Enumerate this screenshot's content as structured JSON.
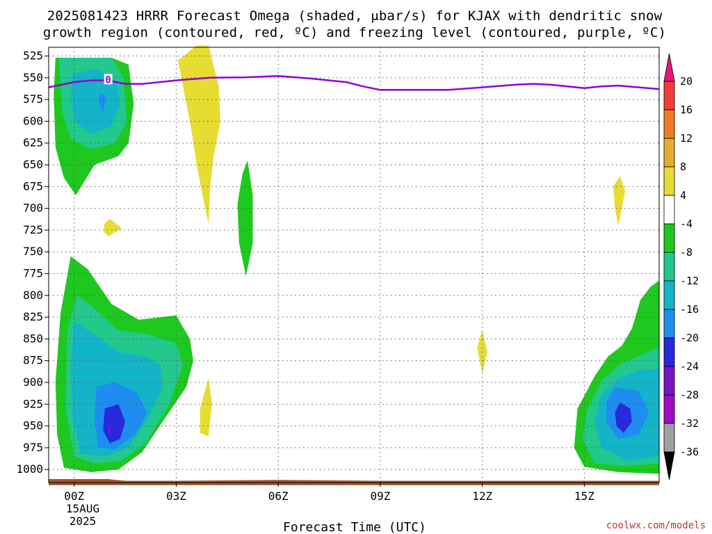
{
  "title": {
    "line1": "2025081423 HRRR Forecast Omega (shaded, μbar/s) for KJAX with dendritic snow",
    "line2": "growth region (contoured, red, ºC) and freezing level (contoured, purple, ºC)"
  },
  "xlabel": "Forecast Time (UTC)",
  "date_label": {
    "day": "15AUG",
    "year": "2025"
  },
  "credit": "coolwx.com/models",
  "colors": {
    "ground": "#a0522d",
    "freezing_level": "#9400d3",
    "grid": "#555555"
  },
  "chart_data": {
    "type": "heatmap",
    "x_axis": {
      "range_hours": [
        -0.75,
        17.2
      ],
      "ticks": [
        0,
        3,
        6,
        9,
        12,
        15
      ],
      "tick_labels": [
        "00Z",
        "03Z",
        "06Z",
        "09Z",
        "12Z",
        "15Z"
      ]
    },
    "y_axis": {
      "range_mb": [
        1015,
        515
      ],
      "inverted": true,
      "ticks": [
        525,
        550,
        575,
        600,
        625,
        650,
        675,
        700,
        725,
        750,
        775,
        800,
        825,
        850,
        875,
        900,
        925,
        950,
        975,
        1000
      ],
      "tick_labels": [
        "525",
        "550",
        "575",
        "600",
        "625",
        "650",
        "675",
        "700",
        "725",
        "750",
        "775",
        "800",
        "825",
        "850",
        "875",
        "900",
        "925",
        "950",
        "975",
        "1000"
      ]
    },
    "grid": true,
    "colorbar": {
      "labels": [
        "20",
        "16",
        "12",
        "8",
        "4",
        "-4",
        "-8",
        "-12",
        "-16",
        "-20",
        "-24",
        "-28",
        "-32",
        "-36"
      ],
      "bins": [
        {
          "range": [
            16,
            20
          ],
          "color": "#f03c3c"
        },
        {
          "range": [
            12,
            16
          ],
          "color": "#ee7d26"
        },
        {
          "range": [
            8,
            12
          ],
          "color": "#e6ad2c"
        },
        {
          "range": [
            4,
            8
          ],
          "color": "#e6dc32"
        },
        {
          "range": [
            -4,
            4
          ],
          "color": "#ffffff"
        },
        {
          "range": [
            -8,
            -4
          ],
          "color": "#1ec81e"
        },
        {
          "range": [
            -12,
            -8
          ],
          "color": "#22c88c"
        },
        {
          "range": [
            -16,
            -12
          ],
          "color": "#14b4c8"
        },
        {
          "range": [
            -20,
            -16
          ],
          "color": "#1e8cf0"
        },
        {
          "range": [
            -24,
            -20
          ],
          "color": "#2828dc"
        },
        {
          "range": [
            -28,
            -24
          ],
          "color": "#7814c8"
        },
        {
          "range": [
            -32,
            -28
          ],
          "color": "#a00ac8"
        },
        {
          "range": [
            -36,
            -32
          ],
          "color": "#a0a0a0"
        }
      ],
      "over_color": "#e6147a",
      "under_color": "#000000"
    },
    "omega_regions": [
      {
        "color": "#1ec81e",
        "pts": [
          [
            -0.55,
            527
          ],
          [
            0.2,
            527
          ],
          [
            1.1,
            527
          ],
          [
            1.6,
            535
          ],
          [
            1.75,
            580
          ],
          [
            1.6,
            625
          ],
          [
            1.3,
            640
          ],
          [
            0.6,
            650
          ],
          [
            0.05,
            685
          ],
          [
            -0.3,
            665
          ],
          [
            -0.55,
            630
          ],
          [
            -0.6,
            570
          ]
        ]
      },
      {
        "color": "#22c88c",
        "pts": [
          [
            -0.45,
            527
          ],
          [
            1.1,
            527
          ],
          [
            1.45,
            550
          ],
          [
            1.55,
            600
          ],
          [
            1.2,
            625
          ],
          [
            0.5,
            632
          ],
          [
            -0.1,
            620
          ],
          [
            -0.35,
            590
          ]
        ]
      },
      {
        "color": "#14b4c8",
        "pts": [
          [
            -0.05,
            545
          ],
          [
            0.7,
            540
          ],
          [
            1.25,
            555
          ],
          [
            1.35,
            580
          ],
          [
            1.1,
            606
          ],
          [
            0.5,
            615
          ],
          [
            0.0,
            600
          ],
          [
            -0.1,
            570
          ]
        ]
      },
      {
        "color": "#1e8cf0",
        "pts": [
          [
            0.75,
            568
          ],
          [
            0.95,
            572
          ],
          [
            0.85,
            590
          ],
          [
            0.72,
            578
          ]
        ]
      },
      {
        "color": "#1ec81e",
        "pts": [
          [
            -0.4,
            820
          ],
          [
            -0.1,
            755
          ],
          [
            0.4,
            770
          ],
          [
            1.1,
            810
          ],
          [
            1.9,
            828
          ],
          [
            3.0,
            823
          ],
          [
            3.4,
            850
          ],
          [
            3.5,
            875
          ],
          [
            3.3,
            905
          ],
          [
            2.6,
            945
          ],
          [
            2.0,
            980
          ],
          [
            1.3,
            1000
          ],
          [
            0.5,
            1003
          ],
          [
            -0.3,
            998
          ],
          [
            -0.5,
            960
          ],
          [
            -0.55,
            900
          ]
        ]
      },
      {
        "color": "#22c88c",
        "pts": [
          [
            -0.2,
            840
          ],
          [
            0.1,
            800
          ],
          [
            0.6,
            815
          ],
          [
            1.3,
            840
          ],
          [
            2.2,
            845
          ],
          [
            3.0,
            855
          ],
          [
            3.2,
            880
          ],
          [
            2.8,
            925
          ],
          [
            2.1,
            970
          ],
          [
            1.4,
            990
          ],
          [
            0.6,
            993
          ],
          [
            0.0,
            985
          ],
          [
            -0.25,
            930
          ]
        ]
      },
      {
        "color": "#14b4c8",
        "pts": [
          [
            0.0,
            830
          ],
          [
            0.6,
            845
          ],
          [
            1.3,
            865
          ],
          [
            2.1,
            870
          ],
          [
            2.55,
            880
          ],
          [
            2.6,
            905
          ],
          [
            2.2,
            940
          ],
          [
            1.6,
            975
          ],
          [
            0.9,
            985
          ],
          [
            0.2,
            982
          ],
          [
            -0.05,
            940
          ],
          [
            -0.1,
            880
          ]
        ]
      },
      {
        "color": "#1e8cf0",
        "pts": [
          [
            0.65,
            905
          ],
          [
            1.2,
            900
          ],
          [
            1.85,
            912
          ],
          [
            2.15,
            935
          ],
          [
            1.8,
            960
          ],
          [
            1.2,
            977
          ],
          [
            0.7,
            974
          ],
          [
            0.6,
            940
          ]
        ]
      },
      {
        "color": "#2828dc",
        "pts": [
          [
            0.9,
            930
          ],
          [
            1.3,
            925
          ],
          [
            1.5,
            945
          ],
          [
            1.35,
            965
          ],
          [
            1.05,
            970
          ],
          [
            0.85,
            955
          ]
        ]
      },
      {
        "color": "#a00ac8",
        "pts": [
          [
            1.0,
            952
          ],
          [
            1.08,
            950
          ],
          [
            1.05,
            962
          ]
        ]
      },
      {
        "color": "#1ec81e",
        "pts": [
          [
            17.2,
            783
          ],
          [
            17.2,
            1005
          ],
          [
            16.0,
            1003
          ],
          [
            15.0,
            997
          ],
          [
            14.7,
            975
          ],
          [
            14.8,
            930
          ],
          [
            15.3,
            893
          ],
          [
            15.7,
            870
          ],
          [
            16.1,
            858
          ],
          [
            16.4,
            838
          ],
          [
            16.65,
            805
          ],
          [
            16.95,
            790
          ]
        ]
      },
      {
        "color": "#22c88c",
        "pts": [
          [
            17.2,
            860
          ],
          [
            17.2,
            993
          ],
          [
            16.1,
            996
          ],
          [
            15.3,
            993
          ],
          [
            14.95,
            965
          ],
          [
            15.1,
            930
          ],
          [
            15.5,
            898
          ],
          [
            16.1,
            878
          ],
          [
            16.7,
            868
          ]
        ]
      },
      {
        "color": "#14b4c8",
        "pts": [
          [
            17.2,
            885
          ],
          [
            17.2,
            985
          ],
          [
            16.3,
            990
          ],
          [
            15.5,
            975
          ],
          [
            15.3,
            945
          ],
          [
            15.5,
            915
          ],
          [
            16.0,
            895
          ],
          [
            16.7,
            885
          ]
        ]
      },
      {
        "color": "#1e8cf0",
        "pts": [
          [
            15.9,
            905
          ],
          [
            16.6,
            910
          ],
          [
            16.9,
            935
          ],
          [
            16.6,
            960
          ],
          [
            16.0,
            965
          ],
          [
            15.65,
            945
          ],
          [
            15.65,
            922
          ]
        ]
      },
      {
        "color": "#2828dc",
        "pts": [
          [
            16.05,
            923
          ],
          [
            16.35,
            930
          ],
          [
            16.4,
            945
          ],
          [
            16.15,
            958
          ],
          [
            15.95,
            950
          ],
          [
            15.9,
            935
          ]
        ]
      },
      {
        "color": "#e6dc32",
        "pts": [
          [
            3.05,
            530
          ],
          [
            3.6,
            513
          ],
          [
            3.95,
            513
          ],
          [
            4.25,
            560
          ],
          [
            4.3,
            600
          ],
          [
            4.1,
            640
          ],
          [
            4.0,
            675
          ],
          [
            3.95,
            718
          ],
          [
            3.8,
            690
          ],
          [
            3.6,
            650
          ],
          [
            3.45,
            610
          ],
          [
            3.25,
            570
          ]
        ]
      },
      {
        "color": "#1ec81e",
        "pts": [
          [
            4.95,
            660
          ],
          [
            5.1,
            645
          ],
          [
            5.25,
            685
          ],
          [
            5.25,
            740
          ],
          [
            5.05,
            778
          ],
          [
            4.85,
            740
          ],
          [
            4.8,
            695
          ]
        ]
      },
      {
        "color": "#e6dc32",
        "pts": [
          [
            0.88,
            718
          ],
          [
            1.05,
            712
          ],
          [
            1.4,
            723
          ],
          [
            1.0,
            732
          ],
          [
            0.88,
            727
          ]
        ]
      },
      {
        "color": "#e6dc32",
        "pts": [
          [
            3.7,
            930
          ],
          [
            3.95,
            895
          ],
          [
            4.05,
            925
          ],
          [
            3.95,
            962
          ],
          [
            3.7,
            958
          ]
        ]
      },
      {
        "color": "#e6dc32",
        "pts": [
          [
            11.85,
            860
          ],
          [
            12.0,
            840
          ],
          [
            12.15,
            865
          ],
          [
            12.0,
            890
          ]
        ]
      },
      {
        "color": "#e6dc32",
        "pts": [
          [
            15.85,
            675
          ],
          [
            16.05,
            663
          ],
          [
            16.2,
            680
          ],
          [
            16.0,
            720
          ],
          [
            15.9,
            700
          ]
        ]
      }
    ],
    "freezing_level": {
      "label": "0",
      "label_at": [
        1.0,
        552
      ],
      "points": [
        [
          -0.75,
          561
        ],
        [
          0.0,
          555
        ],
        [
          0.5,
          553
        ],
        [
          1.0,
          553
        ],
        [
          1.5,
          557
        ],
        [
          2.0,
          557
        ],
        [
          3.0,
          553
        ],
        [
          4.0,
          550
        ],
        [
          5.0,
          549.5
        ],
        [
          6.0,
          548
        ],
        [
          7.0,
          551
        ],
        [
          8.0,
          555
        ],
        [
          8.5,
          560
        ],
        [
          9.0,
          564
        ],
        [
          10.0,
          564
        ],
        [
          11.0,
          564
        ],
        [
          12.0,
          561
        ],
        [
          13.0,
          558
        ],
        [
          13.5,
          557
        ],
        [
          14.0,
          558
        ],
        [
          15.0,
          562
        ],
        [
          15.5,
          560
        ],
        [
          16.0,
          559
        ],
        [
          17.2,
          563
        ]
      ]
    },
    "ground": {
      "points": [
        [
          -0.75,
          1011
        ],
        [
          1.0,
          1011
        ],
        [
          1.5,
          1013
        ],
        [
          3.0,
          1013
        ],
        [
          6.0,
          1012
        ],
        [
          9.0,
          1013
        ],
        [
          12.0,
          1013
        ],
        [
          15.0,
          1013
        ],
        [
          17.2,
          1013
        ]
      ],
      "bottom_mb": 1018
    }
  }
}
